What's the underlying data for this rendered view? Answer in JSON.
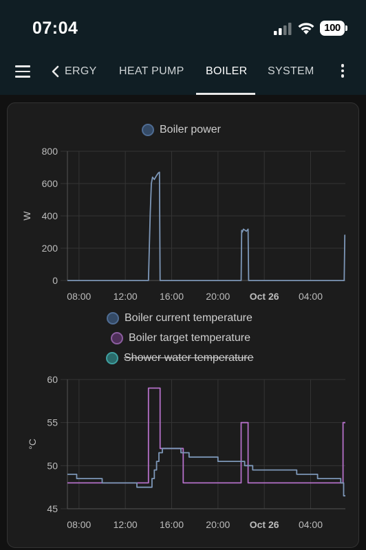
{
  "status_bar": {
    "time": "07:04",
    "battery": "100",
    "icons": [
      "signal-icon",
      "wifi-icon",
      "battery-icon"
    ]
  },
  "toolbar": {
    "tabs": [
      {
        "label": "ERGY",
        "active": false
      },
      {
        "label": "HEAT PUMP",
        "active": false
      },
      {
        "label": "BOILER",
        "active": true
      },
      {
        "label": "SYSTEM",
        "active": false
      }
    ],
    "icons": [
      "menu-icon",
      "chevron-left-icon",
      "more-vert-icon"
    ]
  },
  "chart_data": [
    {
      "type": "line",
      "legend": [
        {
          "name": "Boiler power",
          "color": "#4f6c93",
          "hidden": false
        }
      ],
      "ylabel": "W",
      "ylim": [
        0,
        800
      ],
      "yticks": [
        "800",
        "600",
        "400",
        "200",
        "0"
      ],
      "xticks": [
        "08:00",
        "12:00",
        "16:00",
        "20:00",
        "Oct 26",
        "04:00"
      ],
      "xlim_hours": [
        7.0,
        31.0
      ],
      "grid": true,
      "series": [
        {
          "name": "Boiler power",
          "color": "#7d97b8",
          "points": [
            [
              7.0,
              0
            ],
            [
              14.0,
              0
            ],
            [
              14.05,
              150
            ],
            [
              14.15,
              420
            ],
            [
              14.25,
              600
            ],
            [
              14.35,
              640
            ],
            [
              14.5,
              625
            ],
            [
              14.7,
              650
            ],
            [
              14.85,
              665
            ],
            [
              14.95,
              670
            ],
            [
              15.0,
              0
            ],
            [
              22.0,
              0
            ],
            [
              22.05,
              310
            ],
            [
              22.1,
              300
            ],
            [
              22.2,
              318
            ],
            [
              22.45,
              305
            ],
            [
              22.6,
              318
            ],
            [
              22.65,
              0
            ],
            [
              30.9,
              0
            ],
            [
              30.95,
              280
            ],
            [
              31.0,
              280
            ]
          ]
        }
      ]
    },
    {
      "type": "line",
      "legend": [
        {
          "name": "Boiler current temperature",
          "color": "#4f6c93",
          "hidden": false
        },
        {
          "name": "Boiler target temperature",
          "color": "#8c5ea0",
          "hidden": false
        },
        {
          "name": "Shower water temperature",
          "color": "#3fa0a0",
          "hidden": true
        }
      ],
      "ylabel": "°C",
      "ylim": [
        45,
        60
      ],
      "yticks": [
        "60",
        "55",
        "50",
        "45"
      ],
      "xticks": [
        "08:00",
        "12:00",
        "16:00",
        "20:00",
        "Oct 26",
        "04:00"
      ],
      "xlim_hours": [
        7.0,
        31.0
      ],
      "grid": true,
      "series": [
        {
          "name": "Boiler target temperature",
          "color": "#b570c9",
          "points": [
            [
              7.0,
              48
            ],
            [
              14.0,
              48
            ],
            [
              14.0,
              59
            ],
            [
              15.0,
              59
            ],
            [
              15.0,
              52
            ],
            [
              17.0,
              52
            ],
            [
              17.0,
              48
            ],
            [
              22.0,
              48
            ],
            [
              22.0,
              55
            ],
            [
              22.6,
              55
            ],
            [
              22.6,
              48
            ],
            [
              30.8,
              48
            ],
            [
              30.8,
              55
            ],
            [
              31.0,
              55
            ]
          ]
        },
        {
          "name": "Boiler current temperature",
          "color": "#7d97b8",
          "points": [
            [
              7.0,
              49
            ],
            [
              7.8,
              49
            ],
            [
              7.8,
              48.5
            ],
            [
              10.0,
              48.5
            ],
            [
              10.0,
              48
            ],
            [
              13.0,
              48
            ],
            [
              13.0,
              47.5
            ],
            [
              14.3,
              47.5
            ],
            [
              14.3,
              48.5
            ],
            [
              14.5,
              48.5
            ],
            [
              14.5,
              49.5
            ],
            [
              14.7,
              49.5
            ],
            [
              14.7,
              50.5
            ],
            [
              14.9,
              50.5
            ],
            [
              14.9,
              51.5
            ],
            [
              15.2,
              51.5
            ],
            [
              15.2,
              52
            ],
            [
              16.8,
              52
            ],
            [
              16.8,
              51.5
            ],
            [
              17.5,
              51.5
            ],
            [
              17.5,
              51
            ],
            [
              20.0,
              51
            ],
            [
              20.0,
              50.5
            ],
            [
              22.3,
              50.5
            ],
            [
              22.3,
              50
            ],
            [
              23.0,
              50
            ],
            [
              23.0,
              49.5
            ],
            [
              26.8,
              49.5
            ],
            [
              26.8,
              49
            ],
            [
              28.6,
              49
            ],
            [
              28.6,
              48.5
            ],
            [
              30.6,
              48.5
            ],
            [
              30.6,
              48
            ],
            [
              30.85,
              48
            ],
            [
              30.85,
              46.5
            ],
            [
              31.0,
              46.5
            ]
          ]
        }
      ]
    }
  ]
}
